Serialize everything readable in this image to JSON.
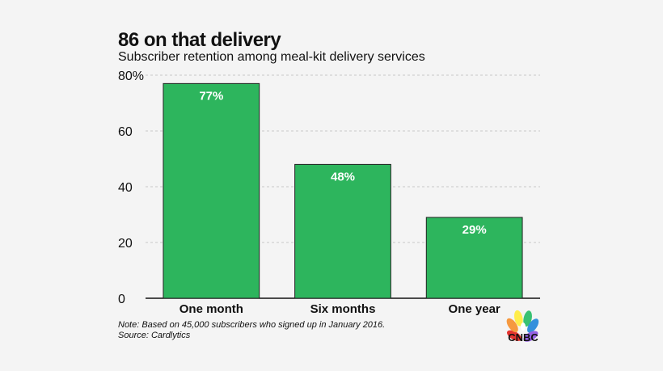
{
  "header": {
    "title": "86 on that delivery",
    "subtitle": "Subscriber retention among meal-kit delivery services"
  },
  "footer": {
    "note": "Note: Based on 45,000 subscribers who signed up in January 2016.",
    "source": "Source: Cardlytics"
  },
  "logo": {
    "text": "CNBC",
    "icon": "peacock-icon"
  },
  "colors": {
    "bar": "#2db55d",
    "bar_border": "#222222",
    "grid": "#c8c8c8",
    "background": "#f4f4f4"
  },
  "chart_data": {
    "type": "bar",
    "title": "86 on that delivery",
    "subtitle": "Subscriber retention among meal-kit delivery services",
    "categories": [
      "One month",
      "Six months",
      "One year"
    ],
    "values": [
      77,
      48,
      29
    ],
    "data_labels": [
      "77%",
      "48%",
      "29%"
    ],
    "ylim": [
      0,
      80
    ],
    "yticks": [
      0,
      20,
      40,
      60,
      80
    ],
    "ytick_labels": [
      "0",
      "20",
      "40",
      "60",
      "80%"
    ],
    "xlabel": "",
    "ylabel": "",
    "grid": true
  }
}
